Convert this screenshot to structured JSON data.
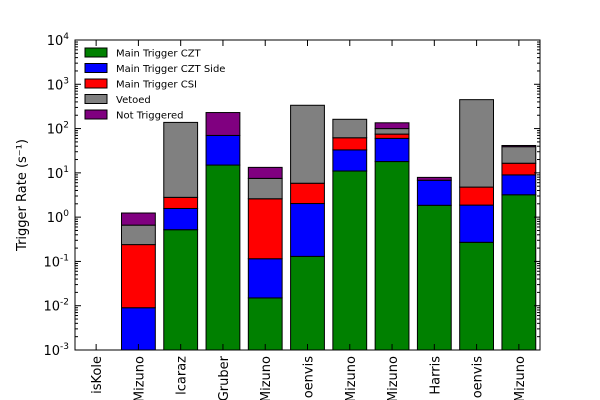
{
  "chart_data": {
    "type": "bar",
    "stacked": true,
    "ylabel": "Trigger Rate (s⁻¹)",
    "yscale": "log",
    "ylim": [
      0.001,
      10000
    ],
    "y_tick_labels": [
      {
        "base": "10",
        "exp": "-3",
        "value": 0.001
      },
      {
        "base": "10",
        "exp": "-2",
        "value": 0.01
      },
      {
        "base": "10",
        "exp": "-1",
        "value": 0.1
      },
      {
        "base": "10",
        "exp": "0",
        "value": 1
      },
      {
        "base": "10",
        "exp": "1",
        "value": 10
      },
      {
        "base": "10",
        "exp": "2",
        "value": 100
      },
      {
        "base": "10",
        "exp": "3",
        "value": 1000
      },
      {
        "base": "10",
        "exp": "4",
        "value": 10000
      }
    ],
    "categories": [
      "isKole",
      "Mizuno",
      "lcaraz",
      "Gruber",
      "Mizuno",
      "oenvis",
      "Mizuno",
      "Mizuno",
      "Harris",
      "oenvis",
      "Mizuno"
    ],
    "legend_position": "upper-left",
    "series": [
      {
        "name": "Main Trigger CZT",
        "color": "#008000",
        "values": [
          null,
          null,
          0.52,
          15,
          0.015,
          0.13,
          11,
          18,
          1.85,
          0.27,
          3.2
        ]
      },
      {
        "name": "Main Trigger CZT Side",
        "color": "#0000ff",
        "values": [
          null,
          0.009,
          1.05,
          55,
          0.1,
          1.9,
          22,
          42,
          4.95,
          1.6,
          5.8
        ]
      },
      {
        "name": "Main Trigger CSI",
        "color": "#ff0000",
        "values": [
          null,
          0.231,
          1.23,
          0,
          2.485,
          3.8,
          29,
          15,
          0,
          2.9,
          7.5
        ]
      },
      {
        "name": "Vetoed",
        "color": "#808080",
        "values": [
          null,
          0.42,
          135,
          0,
          4.9,
          330,
          100,
          25,
          0,
          445,
          22.5
        ]
      },
      {
        "name": "Not Triggered",
        "color": "#800080",
        "values": [
          null,
          0.58,
          0,
          160,
          5.8,
          0,
          0,
          35,
          1.1,
          0,
          2.5
        ]
      }
    ]
  }
}
